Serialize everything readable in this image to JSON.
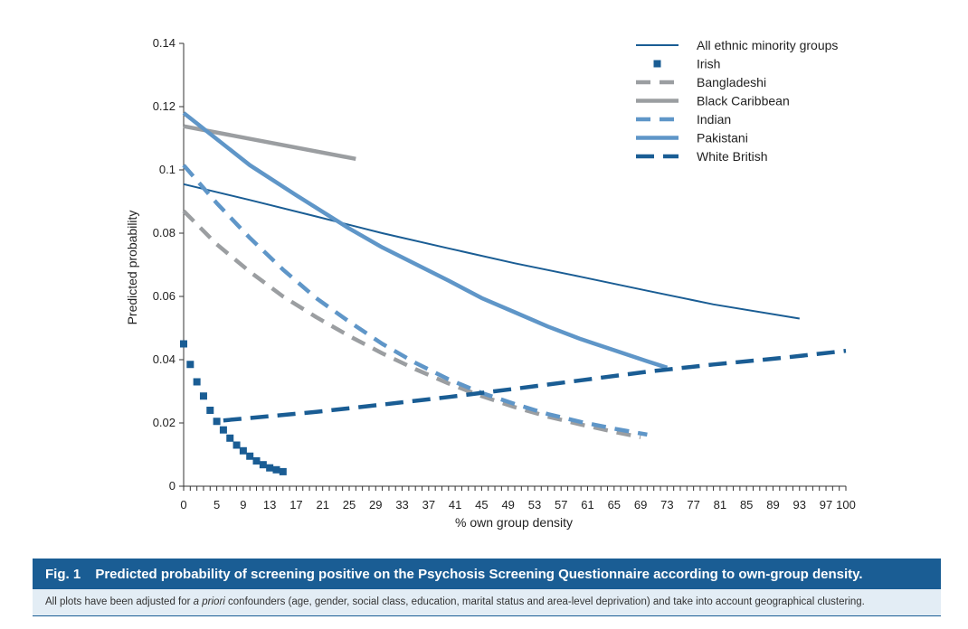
{
  "caption": {
    "figure_label": "Fig. 1",
    "title": "Predicted probability of screening positive on the Psychosis Screening Questionnaire according to own-group density.",
    "note_before": "All plots have been adjusted for ",
    "note_italic": "a priori",
    "note_after": " confounders (age, gender, social class, education, marital status and area-level deprivation) and take into account geographical clustering."
  },
  "chart_data": {
    "type": "line",
    "xlabel": "% own group density",
    "ylabel": "Predicted probability",
    "xlim": [
      0,
      100
    ],
    "ylim": [
      0,
      0.14
    ],
    "x_ticks": [
      0,
      1,
      2,
      3,
      4,
      5,
      6,
      7,
      8,
      9,
      10,
      11,
      12,
      13,
      14,
      15,
      16,
      17,
      18,
      19,
      20,
      21,
      22,
      23,
      24,
      25,
      26,
      27,
      28,
      29,
      30,
      31,
      32,
      33,
      34,
      35,
      36,
      37,
      38,
      39,
      40,
      41,
      42,
      43,
      44,
      45,
      46,
      47,
      48,
      49,
      50,
      51,
      52,
      53,
      54,
      55,
      56,
      57,
      58,
      59,
      60,
      61,
      62,
      63,
      64,
      65,
      66,
      67,
      68,
      69,
      70,
      71,
      72,
      73,
      74,
      75,
      76,
      77,
      78,
      79,
      80,
      81,
      82,
      83,
      84,
      85,
      86,
      87,
      88,
      89,
      90,
      91,
      92,
      93,
      94,
      95,
      96,
      97,
      98,
      99,
      100
    ],
    "x_tick_labels": [
      "0",
      "5",
      "9",
      "13",
      "17",
      "21",
      "25",
      "29",
      "33",
      "37",
      "41",
      "45",
      "49",
      "53",
      "57",
      "61",
      "65",
      "69",
      "73",
      "77",
      "81",
      "85",
      "89",
      "93",
      "97",
      "100"
    ],
    "x_tick_label_values": [
      0,
      5,
      9,
      13,
      17,
      21,
      25,
      29,
      33,
      37,
      41,
      45,
      49,
      53,
      57,
      61,
      65,
      69,
      73,
      77,
      81,
      85,
      89,
      93,
      97,
      100
    ],
    "y_ticks": [
      0,
      0.02,
      0.04,
      0.06,
      0.08,
      0.1,
      0.12,
      0.14
    ],
    "y_tick_labels": [
      "0",
      "0.02",
      "0.04",
      "0.06",
      "0.08",
      "0.1",
      "0.12",
      "0.14"
    ],
    "grid": false,
    "legend_position": "top-right",
    "series": [
      {
        "name": "All ethnic minority groups",
        "style": "solid-thin",
        "color": "#1a5d94",
        "x": [
          0,
          10,
          20,
          30,
          40,
          50,
          60,
          70,
          80,
          93
        ],
        "y": [
          0.0955,
          0.0905,
          0.0853,
          0.08,
          0.0752,
          0.0705,
          0.0662,
          0.0618,
          0.0575,
          0.053
        ]
      },
      {
        "name": "Irish",
        "style": "square-markers",
        "color": "#1a5d94",
        "x": [
          0,
          1,
          2,
          3,
          4,
          5,
          6,
          7,
          8,
          9,
          10,
          11,
          12,
          13,
          14,
          15
        ],
        "y": [
          0.045,
          0.0385,
          0.033,
          0.0285,
          0.024,
          0.0205,
          0.0178,
          0.0152,
          0.013,
          0.0112,
          0.0095,
          0.008,
          0.0068,
          0.0058,
          0.0052,
          0.0046
        ]
      },
      {
        "name": "Bangladeshi",
        "style": "dashed",
        "color": "#9b9ea1",
        "x": [
          0,
          5,
          10,
          15,
          20,
          25,
          30,
          35,
          40,
          45,
          50,
          55,
          60,
          65,
          69
        ],
        "y": [
          0.087,
          0.0765,
          0.0678,
          0.06,
          0.0535,
          0.0475,
          0.042,
          0.037,
          0.0325,
          0.0285,
          0.025,
          0.022,
          0.0195,
          0.0172,
          0.0155
        ]
      },
      {
        "name": "Black Caribbean",
        "style": "solid-thick",
        "color": "#9b9ea1",
        "x": [
          0,
          26
        ],
        "y": [
          0.1138,
          0.1035
        ]
      },
      {
        "name": "Indian",
        "style": "dashed",
        "color": "#5f96c8",
        "x": [
          0,
          5,
          10,
          15,
          20,
          25,
          30,
          35,
          40,
          45,
          50,
          55,
          60,
          65,
          70
        ],
        "y": [
          0.1015,
          0.0895,
          0.0785,
          0.0685,
          0.0595,
          0.052,
          0.045,
          0.039,
          0.0338,
          0.0295,
          0.026,
          0.0228,
          0.0203,
          0.0182,
          0.0163
        ]
      },
      {
        "name": "Pakistani",
        "style": "solid-thick",
        "color": "#5f96c8",
        "x": [
          0,
          10,
          17,
          25,
          30,
          40,
          45,
          50,
          55,
          60,
          65,
          70,
          73
        ],
        "y": [
          0.118,
          0.1015,
          0.092,
          0.0815,
          0.0755,
          0.065,
          0.0595,
          0.055,
          0.0505,
          0.0465,
          0.043,
          0.0395,
          0.0375
        ]
      },
      {
        "name": "White British",
        "style": "dashed-thick",
        "color": "#1a5d94",
        "x": [
          6,
          20,
          30,
          40,
          50,
          60,
          70,
          80,
          90,
          100
        ],
        "y": [
          0.0208,
          0.0235,
          0.0258,
          0.0282,
          0.0308,
          0.0335,
          0.0362,
          0.0385,
          0.0405,
          0.0428
        ]
      }
    ]
  }
}
